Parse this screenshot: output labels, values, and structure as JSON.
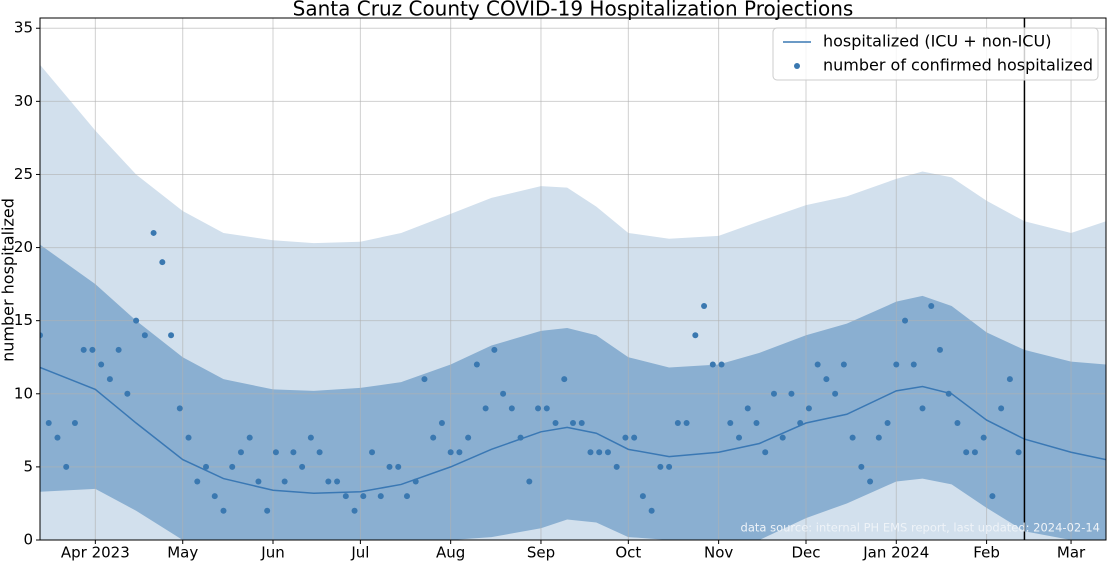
{
  "chart_data": {
    "type": "scatter",
    "title": "Santa Cruz County COVID-19 Hospitalization Projections",
    "y_label": "number hospitalized",
    "annotation": "data source: internal PH EMS report, last updated: 2024-02-14",
    "xlim": [
      "2023-03-13",
      "2024-03-13"
    ],
    "ylim": [
      0,
      35.7
    ],
    "yticks": [
      0,
      5,
      10,
      15,
      20,
      25,
      30,
      35
    ],
    "xticks": [
      {
        "value": "2023-04-01",
        "label": "Apr 2023"
      },
      {
        "value": "2023-05-01",
        "label": "May"
      },
      {
        "value": "2023-06-01",
        "label": "Jun"
      },
      {
        "value": "2023-07-01",
        "label": "Jul"
      },
      {
        "value": "2023-08-01",
        "label": "Aug"
      },
      {
        "value": "2023-09-01",
        "label": "Sep"
      },
      {
        "value": "2023-10-01",
        "label": "Oct"
      },
      {
        "value": "2023-11-01",
        "label": "Nov"
      },
      {
        "value": "2023-12-01",
        "label": "Dec"
      },
      {
        "value": "2024-01-01",
        "label": "Jan 2024"
      },
      {
        "value": "2024-02-01",
        "label": "Feb"
      },
      {
        "value": "2024-03-01",
        "label": "Mar"
      }
    ],
    "grid": true,
    "legend": "upper right",
    "vline": "2024-02-14",
    "bands": [
      {
        "color": "#d2e0ed",
        "x": [
          "2023-03-13",
          "2023-04-01",
          "2023-04-15",
          "2023-05-01",
          "2023-05-15",
          "2023-06-01",
          "2023-06-15",
          "2023-07-01",
          "2023-07-15",
          "2023-08-01",
          "2023-08-15",
          "2023-09-01",
          "2023-09-10",
          "2023-09-20",
          "2023-10-01",
          "2023-10-15",
          "2023-11-01",
          "2023-11-15",
          "2023-12-01",
          "2023-12-15",
          "2024-01-01",
          "2024-01-10",
          "2024-01-20",
          "2024-02-01",
          "2024-02-14",
          "2024-03-01",
          "2024-03-13"
        ],
        "upper": [
          32.5,
          28,
          25,
          22.5,
          21,
          20.5,
          20.3,
          20.4,
          21,
          22.3,
          23.4,
          24.2,
          24.1,
          22.8,
          21,
          20.6,
          20.8,
          21.8,
          22.9,
          23.5,
          24.7,
          25.2,
          24.8,
          23.2,
          21.8,
          21,
          21.8
        ]
      },
      {
        "color": "#8aafd1",
        "x": [
          "2023-03-13",
          "2023-04-01",
          "2023-04-15",
          "2023-05-01",
          "2023-05-15",
          "2023-06-01",
          "2023-06-15",
          "2023-07-01",
          "2023-07-15",
          "2023-08-01",
          "2023-08-15",
          "2023-09-01",
          "2023-09-10",
          "2023-09-20",
          "2023-10-01",
          "2023-10-15",
          "2023-11-01",
          "2023-11-15",
          "2023-12-01",
          "2023-12-15",
          "2024-01-01",
          "2024-01-10",
          "2024-01-20",
          "2024-02-01",
          "2024-02-14",
          "2024-03-01",
          "2024-03-13"
        ],
        "upper": [
          20.2,
          17.5,
          15,
          12.5,
          11,
          10.3,
          10.2,
          10.4,
          10.8,
          12,
          13.3,
          14.3,
          14.5,
          14,
          12.5,
          11.8,
          12,
          12.8,
          14,
          14.8,
          16.3,
          16.7,
          16,
          14.2,
          13,
          12.2,
          12
        ],
        "lower": [
          3.3,
          3.5,
          2.0,
          0,
          0,
          0,
          0,
          0,
          0,
          0,
          0.2,
          0.8,
          1.4,
          1.2,
          0.2,
          0,
          0,
          0,
          1.5,
          2.5,
          4.0,
          4.2,
          3.8,
          2.2,
          0.6,
          0,
          0
        ]
      }
    ],
    "series": [
      {
        "name": "hospitalized (ICU + non-ICU)",
        "type": "line",
        "color": "#3a78b4",
        "x": [
          "2023-03-13",
          "2023-04-01",
          "2023-04-15",
          "2023-05-01",
          "2023-05-15",
          "2023-06-01",
          "2023-06-15",
          "2023-07-01",
          "2023-07-15",
          "2023-08-01",
          "2023-08-15",
          "2023-09-01",
          "2023-09-10",
          "2023-09-20",
          "2023-10-01",
          "2023-10-15",
          "2023-11-01",
          "2023-11-15",
          "2023-12-01",
          "2023-12-15",
          "2024-01-01",
          "2024-01-10",
          "2024-01-20",
          "2024-02-01",
          "2024-02-14",
          "2024-03-01",
          "2024-03-13"
        ],
        "values": [
          11.8,
          10.3,
          8.0,
          5.5,
          4.2,
          3.4,
          3.2,
          3.3,
          3.8,
          5.0,
          6.2,
          7.4,
          7.7,
          7.3,
          6.2,
          5.7,
          6.0,
          6.6,
          8.0,
          8.6,
          10.2,
          10.5,
          10.0,
          8.2,
          6.9,
          6.0,
          5.5
        ]
      },
      {
        "name": "number of confirmed hospitalized",
        "type": "scatter",
        "color": "#3a78b0",
        "x": [
          "2023-03-13",
          "2023-03-16",
          "2023-03-19",
          "2023-03-22",
          "2023-03-25",
          "2023-03-28",
          "2023-03-31",
          "2023-04-03",
          "2023-04-06",
          "2023-04-09",
          "2023-04-12",
          "2023-04-15",
          "2023-04-18",
          "2023-04-21",
          "2023-04-24",
          "2023-04-27",
          "2023-04-30",
          "2023-05-03",
          "2023-05-06",
          "2023-05-09",
          "2023-05-12",
          "2023-05-15",
          "2023-05-18",
          "2023-05-21",
          "2023-05-24",
          "2023-05-27",
          "2023-05-30",
          "2023-06-02",
          "2023-06-05",
          "2023-06-08",
          "2023-06-11",
          "2023-06-14",
          "2023-06-17",
          "2023-06-20",
          "2023-06-23",
          "2023-06-26",
          "2023-06-29",
          "2023-07-02",
          "2023-07-05",
          "2023-07-08",
          "2023-07-11",
          "2023-07-14",
          "2023-07-17",
          "2023-07-20",
          "2023-07-23",
          "2023-07-26",
          "2023-07-29",
          "2023-08-01",
          "2023-08-04",
          "2023-08-07",
          "2023-08-10",
          "2023-08-13",
          "2023-08-16",
          "2023-08-19",
          "2023-08-22",
          "2023-08-25",
          "2023-08-28",
          "2023-08-31",
          "2023-09-03",
          "2023-09-06",
          "2023-09-09",
          "2023-09-12",
          "2023-09-15",
          "2023-09-18",
          "2023-09-21",
          "2023-09-24",
          "2023-09-27",
          "2023-09-30",
          "2023-10-03",
          "2023-10-06",
          "2023-10-09",
          "2023-10-12",
          "2023-10-15",
          "2023-10-18",
          "2023-10-21",
          "2023-10-24",
          "2023-10-27",
          "2023-10-30",
          "2023-11-02",
          "2023-11-05",
          "2023-11-08",
          "2023-11-11",
          "2023-11-14",
          "2023-11-17",
          "2023-11-20",
          "2023-11-23",
          "2023-11-26",
          "2023-11-29",
          "2023-12-02",
          "2023-12-05",
          "2023-12-08",
          "2023-12-11",
          "2023-12-14",
          "2023-12-17",
          "2023-12-20",
          "2023-12-23",
          "2023-12-26",
          "2023-12-29",
          "2024-01-01",
          "2024-01-04",
          "2024-01-07",
          "2024-01-10",
          "2024-01-13",
          "2024-01-16",
          "2024-01-19",
          "2024-01-22",
          "2024-01-25",
          "2024-01-28",
          "2024-01-31",
          "2024-02-03",
          "2024-02-06",
          "2024-02-09",
          "2024-02-12"
        ],
        "values": [
          14,
          8,
          7,
          5,
          8,
          13,
          13,
          12,
          11,
          13,
          10,
          15,
          14,
          21,
          19,
          14,
          9,
          7,
          4,
          5,
          3,
          2,
          5,
          6,
          7,
          4,
          2,
          6,
          4,
          6,
          5,
          7,
          6,
          4,
          4,
          3,
          2,
          3,
          6,
          3,
          5,
          5,
          3,
          4,
          11,
          7,
          8,
          6,
          6,
          7,
          12,
          9,
          13,
          10,
          9,
          7,
          4,
          9,
          9,
          8,
          11,
          8,
          8,
          6,
          6,
          6,
          5,
          7,
          7,
          3,
          2,
          5,
          5,
          8,
          8,
          14,
          16,
          12,
          12,
          8,
          7,
          9,
          8,
          6,
          10,
          7,
          10,
          8,
          9,
          12,
          11,
          10,
          12,
          7,
          5,
          4,
          7,
          8,
          12,
          15,
          12,
          9,
          16,
          13,
          10,
          8,
          6,
          6,
          7,
          3,
          9,
          11,
          6
        ]
      }
    ]
  }
}
